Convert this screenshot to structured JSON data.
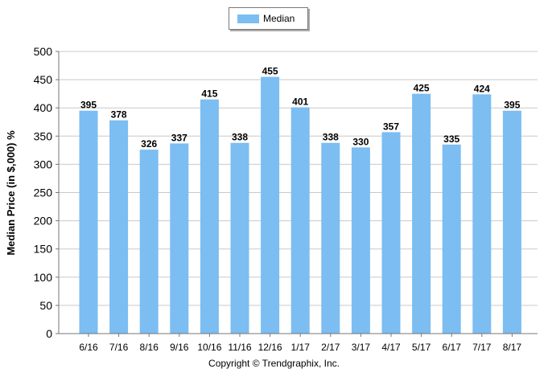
{
  "chart_data": {
    "type": "bar",
    "categories": [
      "6/16",
      "7/16",
      "8/16",
      "9/16",
      "10/16",
      "11/16",
      "12/16",
      "1/17",
      "2/17",
      "3/17",
      "4/17",
      "5/17",
      "6/17",
      "7/17",
      "8/17"
    ],
    "series": [
      {
        "name": "Median",
        "values": [
          395,
          378,
          326,
          337,
          415,
          338,
          455,
          401,
          338,
          330,
          357,
          425,
          335,
          424,
          395
        ]
      }
    ],
    "ylabel": "Median Price (in $,000) %",
    "xlabel": "",
    "ylim": [
      0,
      500
    ],
    "yticks": [
      0,
      50,
      100,
      150,
      200,
      250,
      300,
      350,
      400,
      450,
      500
    ],
    "grid": true,
    "legend_position": "top-center",
    "bar_color": "#7cbdf2",
    "data_labels": true
  },
  "footer": {
    "copyright": "Copyright © Trendgraphix, Inc."
  }
}
